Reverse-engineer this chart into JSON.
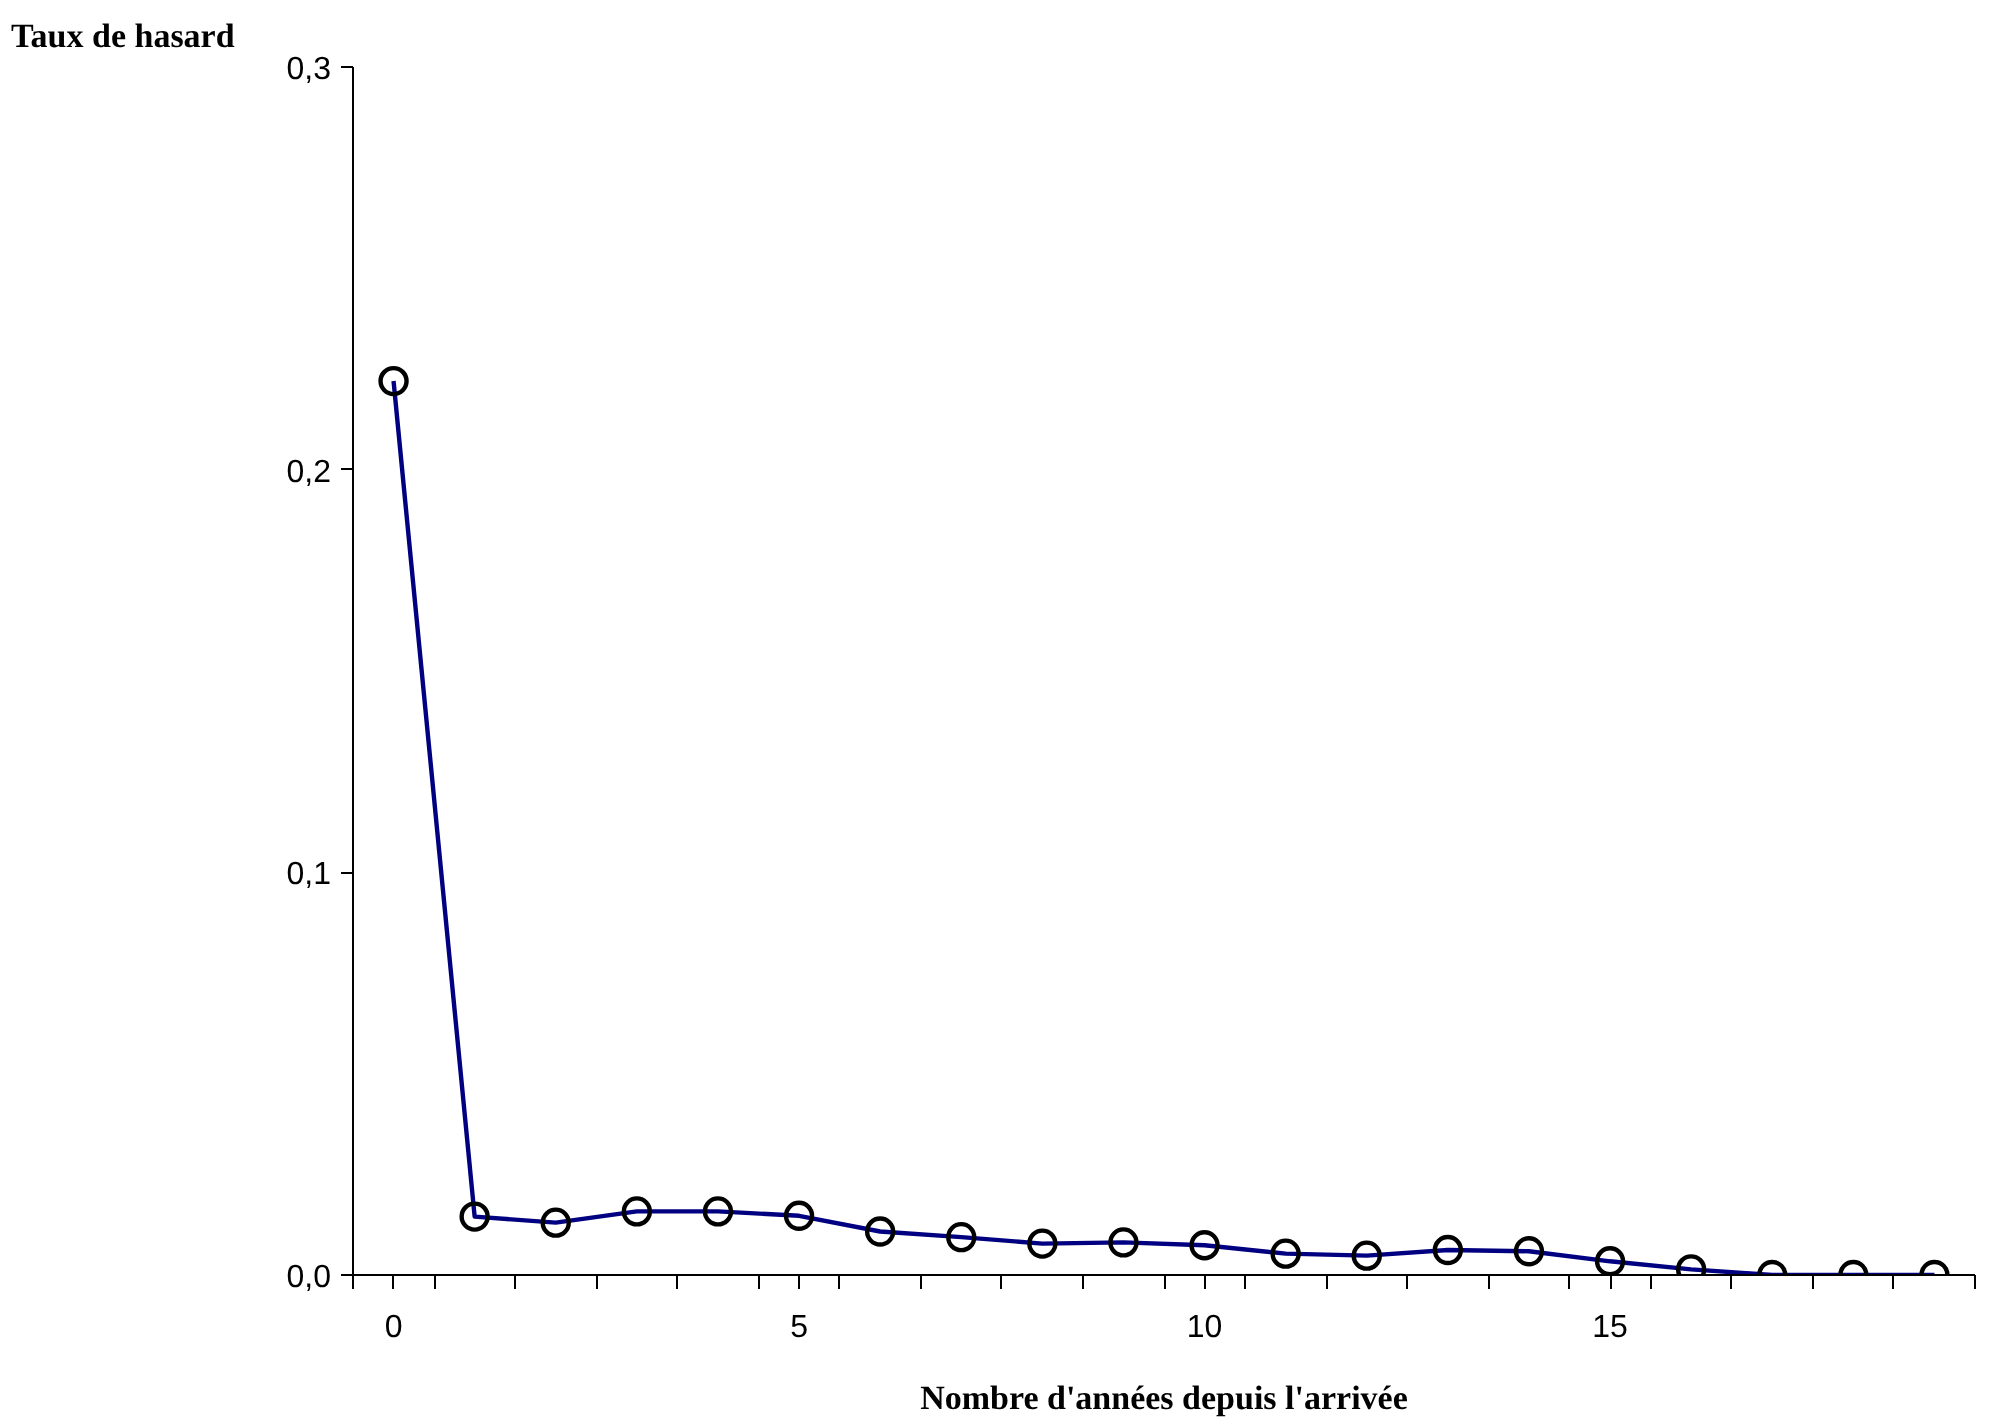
{
  "chart_data": {
    "type": "line",
    "xlabel": "Nombre d'années depuis l'arrivée",
    "ylabel": "Taux de hasard",
    "x": [
      0,
      1,
      2,
      3,
      4,
      5,
      6,
      7,
      8,
      9,
      10,
      11,
      12,
      13,
      14,
      15,
      16,
      17,
      18,
      19
    ],
    "series": [
      {
        "color": "#000080",
        "values": [
          0.222,
          0.0145,
          0.013,
          0.0158,
          0.0158,
          0.0147,
          0.0108,
          0.0094,
          0.0078,
          0.0081,
          0.0074,
          0.0053,
          0.0048,
          0.0062,
          0.0059,
          0.0034,
          0.0014,
          0,
          0,
          0
        ]
      }
    ],
    "xlim": [
      -0.5,
      19.5
    ],
    "xticks": [
      {
        "value": -0.5,
        "label": null
      },
      {
        "value": 0,
        "label": "0"
      },
      {
        "value": 0.5,
        "label": null
      },
      {
        "value": 1.5,
        "label": null
      },
      {
        "value": 2.5,
        "label": null
      },
      {
        "value": 3.5,
        "label": null
      },
      {
        "value": 4.5,
        "label": null
      },
      {
        "value": 5,
        "label": "5"
      },
      {
        "value": 5.5,
        "label": null
      },
      {
        "value": 6.5,
        "label": null
      },
      {
        "value": 7.5,
        "label": null
      },
      {
        "value": 8.5,
        "label": null
      },
      {
        "value": 9.5,
        "label": null
      },
      {
        "value": 10,
        "label": "10"
      },
      {
        "value": 10.5,
        "label": null
      },
      {
        "value": 11.5,
        "label": null
      },
      {
        "value": 12.5,
        "label": null
      },
      {
        "value": 13.5,
        "label": null
      },
      {
        "value": 14.5,
        "label": null
      },
      {
        "value": 15,
        "label": "15"
      },
      {
        "value": 15.5,
        "label": null
      },
      {
        "value": 16.5,
        "label": null
      },
      {
        "value": 17.5,
        "label": null
      },
      {
        "value": 18.5,
        "label": null
      },
      {
        "value": 19.5,
        "label": null
      }
    ],
    "ylim": [
      0,
      0.3
    ],
    "yticks": [
      {
        "value": 0,
        "label": "0,0"
      },
      {
        "value": 0.1,
        "label": "0,1"
      },
      {
        "value": 0.2,
        "label": "0,2"
      },
      {
        "value": 0.3,
        "label": "0,3"
      }
    ],
    "marker": "circle",
    "line_style": "solid",
    "grid": false
  }
}
